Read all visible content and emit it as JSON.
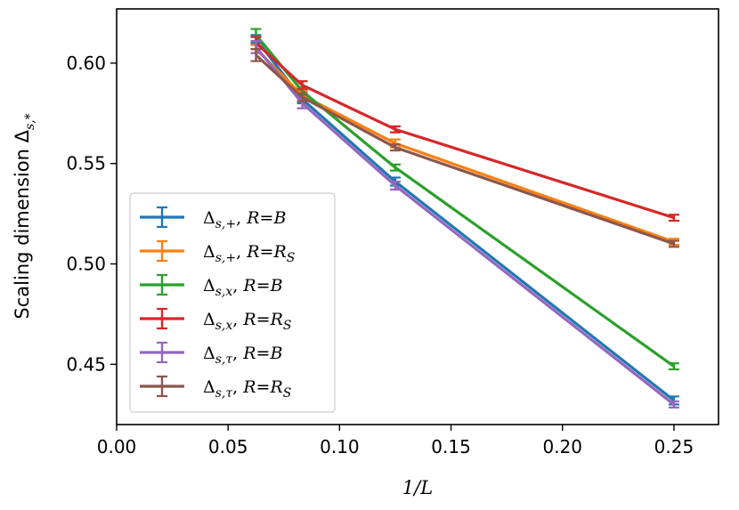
{
  "chart_data": {
    "type": "line",
    "xlabel": "1/L",
    "ylabel": "Scaling dimension Δs,*",
    "xlim": [
      0.0,
      0.27
    ],
    "ylim": [
      0.42,
      0.627
    ],
    "xticks": [
      0.0,
      0.05,
      0.1,
      0.15,
      0.2,
      0.25
    ],
    "xtick_labels": [
      "0.00",
      "0.05",
      "0.10",
      "0.15",
      "0.20",
      "0.25"
    ],
    "yticks": [
      0.45,
      0.5,
      0.55,
      0.6
    ],
    "ytick_labels": [
      "0.45",
      "0.50",
      "0.55",
      "0.60"
    ],
    "legend_location": "lower-left",
    "x": [
      0.0625,
      0.0833,
      0.125,
      0.25
    ],
    "series": [
      {
        "name": "Δs,+ , R=B",
        "color": "#1f77b4",
        "values": [
          0.612,
          0.582,
          0.541,
          0.432
        ],
        "errors": [
          0.002,
          0.002,
          0.002,
          0.002
        ]
      },
      {
        "name": "Δs,+ , R=RS",
        "color": "#ff7f0e",
        "values": [
          0.607,
          0.584,
          0.56,
          0.511
        ],
        "errors": [
          0.002,
          0.002,
          0.002,
          0.0015
        ]
      },
      {
        "name": "Δs,x , R=B",
        "color": "#2ca02c",
        "values": [
          0.614,
          0.586,
          0.548,
          0.449
        ],
        "errors": [
          0.003,
          0.002,
          0.0015,
          0.0015
        ]
      },
      {
        "name": "Δs,x , R=RS",
        "color": "#d62728",
        "values": [
          0.61,
          0.589,
          0.567,
          0.523
        ],
        "errors": [
          0.003,
          0.002,
          0.0015,
          0.0015
        ]
      },
      {
        "name": "Δs,τ , R=B",
        "color": "#9467bd",
        "values": [
          0.608,
          0.58,
          0.539,
          0.43
        ],
        "errors": [
          0.003,
          0.0025,
          0.002,
          0.0015
        ]
      },
      {
        "name": "Δs,τ , R=RS",
        "color": "#8c564b",
        "values": [
          0.604,
          0.583,
          0.558,
          0.51
        ],
        "errors": [
          0.003,
          0.002,
          0.0015,
          0.0015
        ]
      }
    ]
  },
  "legend": [
    {
      "sym": "Δ",
      "sub": "s,+",
      "rhs": "R",
      "eq": "=",
      "val": "B",
      "valsub": ""
    },
    {
      "sym": "Δ",
      "sub": "s,+",
      "rhs": "R",
      "eq": "=",
      "val": "R",
      "valsub": "S"
    },
    {
      "sym": "Δ",
      "sub": "s,x",
      "rhs": "R",
      "eq": "=",
      "val": "B",
      "valsub": ""
    },
    {
      "sym": "Δ",
      "sub": "s,x",
      "rhs": "R",
      "eq": "=",
      "val": "R",
      "valsub": "S"
    },
    {
      "sym": "Δ",
      "sub": "s,τ",
      "rhs": "R",
      "eq": "=",
      "val": "B",
      "valsub": ""
    },
    {
      "sym": "Δ",
      "sub": "s,τ",
      "rhs": "R",
      "eq": "=",
      "val": "R",
      "valsub": "S"
    }
  ],
  "axis_text": {
    "ylabel_main": "Scaling dimension Δ",
    "ylabel_sub": "s,*",
    "xlabel": "1/L"
  }
}
